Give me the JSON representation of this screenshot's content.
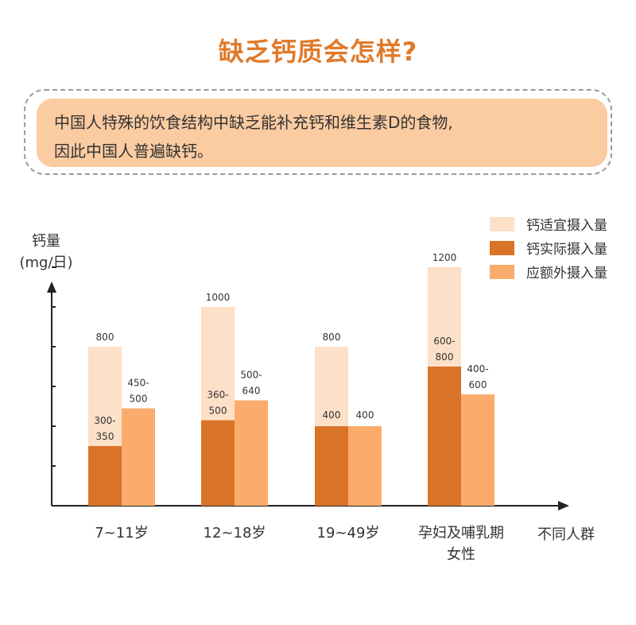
{
  "title": "缺乏钙质会怎样?",
  "callout": {
    "line1": "中国人特殊的饮食结构中缺乏能补充钙和维生素D的食物,",
    "line2": "因此中国人普遍缺钙。"
  },
  "colors": {
    "title": "#e07a2a",
    "callout_bg": "#fbcba1",
    "recommended": "#fde0c8",
    "actual": "#d97327",
    "extra": "#fbac6c"
  },
  "chart_data": {
    "type": "bar",
    "ylabel_line1": "钙量",
    "ylabel_line2": "(mg/日)",
    "xlabel": "不同人群",
    "ylim": [
      0,
      1400
    ],
    "y_ticks": [
      200,
      400,
      600,
      800,
      1000,
      1200
    ],
    "legend_position": "top-right",
    "categories": [
      {
        "line1": "7~11岁",
        "line2": ""
      },
      {
        "line1": "12~18岁",
        "line2": ""
      },
      {
        "line1": "19~49岁",
        "line2": ""
      },
      {
        "line1": "孕妇及哺乳期",
        "line2": "女性"
      }
    ],
    "series": [
      {
        "name": "钙适宜摄入量",
        "color_key": "recommended",
        "values": [
          800,
          1000,
          800,
          1200
        ],
        "labels": [
          [
            "800"
          ],
          [
            "1000"
          ],
          [
            "800"
          ],
          [
            "1200"
          ]
        ]
      },
      {
        "name": "钙实际摄入量",
        "color_key": "actual",
        "values": [
          300,
          430,
          400,
          700
        ],
        "labels": [
          [
            "300-",
            "350"
          ],
          [
            "360-",
            "500"
          ],
          [
            "400"
          ],
          [
            "600-",
            "800"
          ]
        ]
      },
      {
        "name": "应额外摄入量",
        "color_key": "extra",
        "values": [
          490,
          530,
          400,
          560
        ],
        "labels": [
          [
            "450-",
            "500"
          ],
          [
            "500-",
            "640"
          ],
          [
            "400"
          ],
          [
            "400-",
            "600"
          ]
        ]
      }
    ]
  }
}
